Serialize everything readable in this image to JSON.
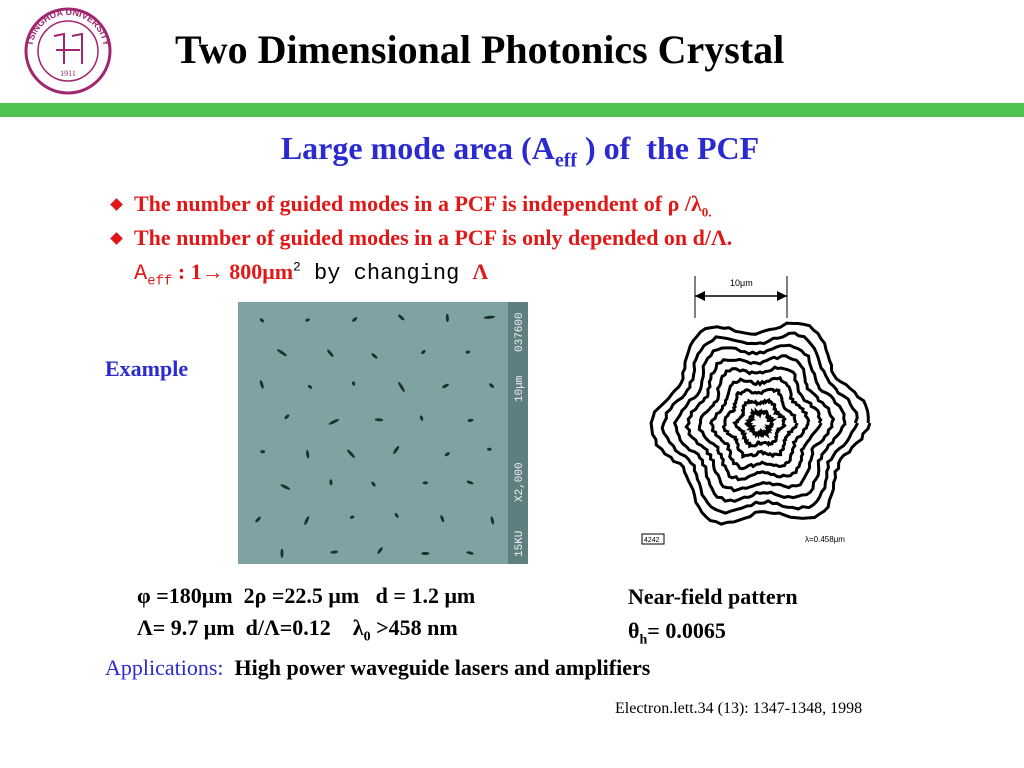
{
  "header": {
    "title": "Two Dimensional Photonics Crystal",
    "logo": {
      "top": "TSINGHUA UNIVERSITY",
      "year": "1911"
    }
  },
  "subtitle": {
    "lead": "Large mode area (A",
    "sub": "eff",
    "tail": " ) of  the PCF"
  },
  "bullets": [
    {
      "text": "The number of guided modes in a PCF is independent of ρ /λ",
      "sub": "0."
    },
    {
      "text": "The number of guided modes in a PCF is only depended on d/Λ."
    }
  ],
  "aeff": {
    "a": "A",
    "sub": "eff",
    "range": " : 1→ 800μm",
    "sup": "2",
    "mid": " by changing ",
    "sym": "Λ"
  },
  "example": "Example",
  "sem": {
    "scale": "10μm",
    "mag": "X2,000",
    "kv": "15KU",
    "id": "037600"
  },
  "nearfield_image": {
    "scale": "10μm",
    "wavelength": "λ=0.458μm",
    "id": "4242"
  },
  "params": [
    {
      "text": "φ =180μm  2ρ =22.5 μm   d = 1.2 μm"
    },
    {
      "lead": "Λ= 9.7 μm  d/Λ=0.12    λ",
      "sub": "0",
      "tail": " >458 nm"
    }
  ],
  "nearfield": {
    "label": "Near-field pattern",
    "theta": "θ",
    "sub": "h",
    "value": "= 0.0065"
  },
  "applications": {
    "label": "Applications:",
    "text": "High power waveguide lasers and amplifiers"
  },
  "reference": "Electron.lett.34 (13): 1347-1348, 1998"
}
